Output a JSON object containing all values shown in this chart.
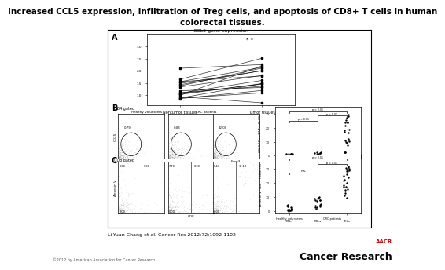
{
  "title_line1": "Increased CCL5 expression, infiltration of Treg cells, and apoptosis of CD8+ T cells in human",
  "title_line2": "colorectal tissues.",
  "title_fontsize": 7.5,
  "citation": "Li-Yuan Chang et al. Cancer Res 2012;72:1092-1102",
  "copyright": "©2012 by American Association for Cancer Research",
  "journal": "Cancer Research",
  "background_color": "#ffffff",
  "panel_A_title": "CCL5 gene expression",
  "panel_A_xlabel_left": "Nontumor tissues",
  "panel_A_xlabel_right": "Tumor tissues",
  "panel_B_fc_values": [
    "0.79",
    "0.03",
    "22.00"
  ],
  "panel_C_fc_values_top_left": [
    "0.00",
    "7.70",
    "0.44"
  ],
  "panel_C_fc_values_top_right": [
    "0.00",
    "0.00",
    "31.13"
  ],
  "panel_C_fc_values_bot_left": [
    "0.00",
    "0.00",
    "0.00"
  ]
}
